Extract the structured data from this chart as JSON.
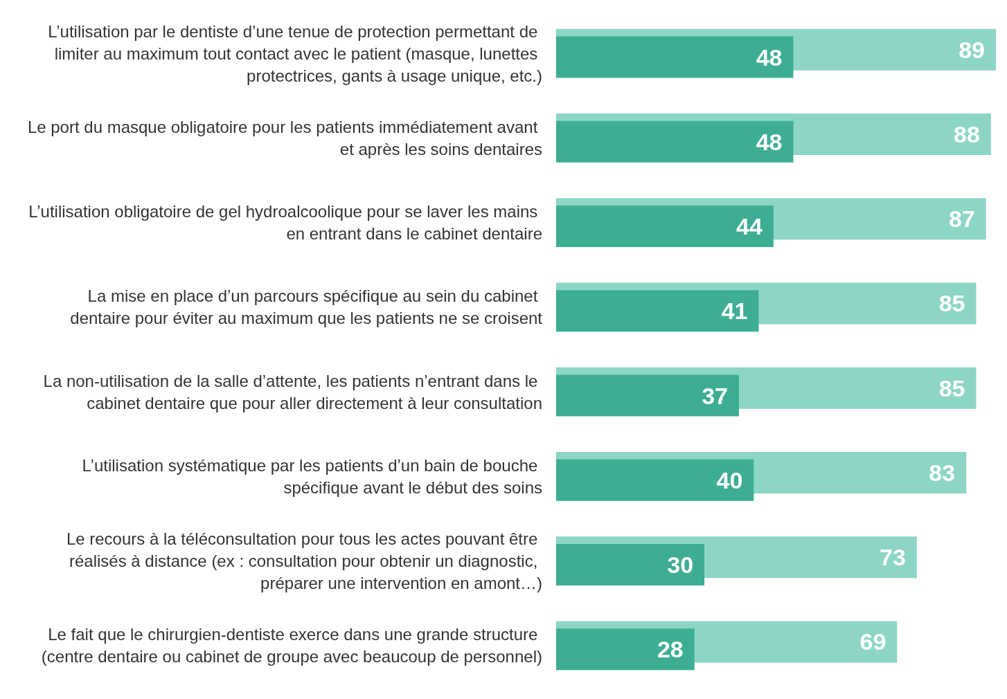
{
  "chart_data": {
    "type": "bar",
    "orientation": "horizontal",
    "data_labels": true,
    "categories": [
      "L’utilisation par le dentiste d’une tenue de protection permettant de limiter au maximum tout contact avec le patient (masque, lunettes protectrices, gants à usage unique, etc.)",
      "Le port du masque obligatoire pour les patients immédiatement avant et après les soins dentaires",
      "L’utilisation obligatoire de gel hydroalcoolique pour se laver les mains en entrant dans le cabinet dentaire",
      "La mise en place d’un parcours spécifique au sein du cabinet dentaire pour éviter au maximum que les patients ne se croisent",
      "La non-utilisation de la salle d’attente, les patients n’entrant dans le cabinet dentaire que pour aller directement à leur consultation",
      "L’utilisation systématique par les patients d’un bain de bouche spécifique avant le début des soins",
      "Le recours à la téléconsultation pour tous les actes pouvant être réalisés à distance (ex : consultation pour obtenir un diagnostic, préparer une intervention en amont…)",
      "Le fait que le chirurgien-dentiste exerce dans une grande structure (centre dentaire ou cabinet de groupe avec beaucoup de personnel)"
    ],
    "series": [
      {
        "color": "#8dd6c6",
        "values": [
          89,
          88,
          87,
          85,
          85,
          83,
          73,
          69
        ]
      },
      {
        "color": "#3dae94",
        "values": [
          48,
          48,
          44,
          41,
          37,
          40,
          30,
          28
        ]
      }
    ]
  }
}
